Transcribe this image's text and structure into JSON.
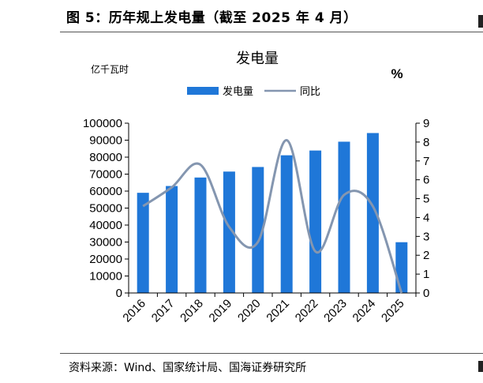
{
  "figure": {
    "title": "图 5：历年规上发电量（截至 2025 年 4 月）",
    "source": "资料来源：Wind、国家统计局、国海证券研究所"
  },
  "chart_data": {
    "type": "bar",
    "title": "发电量",
    "left_unit": "亿千瓦时",
    "right_unit": "%",
    "categories": [
      "2016",
      "2017",
      "2018",
      "2019",
      "2020",
      "2021",
      "2022",
      "2023",
      "2024",
      "2025"
    ],
    "series": [
      {
        "name": "发电量",
        "kind": "bar",
        "axis": "left",
        "color": "#1f77d8",
        "values": [
          59000,
          63000,
          68000,
          71500,
          74200,
          81100,
          83900,
          89100,
          94200,
          29900
        ]
      },
      {
        "name": "同比",
        "kind": "line",
        "axis": "right",
        "color": "#8496b0",
        "values": [
          4.6,
          5.6,
          6.8,
          3.5,
          2.7,
          8.1,
          2.2,
          5.2,
          4.6,
          0.0
        ]
      }
    ],
    "left_axis": {
      "min": 0,
      "max": 100000,
      "ticks": [
        0,
        10000,
        20000,
        30000,
        40000,
        50000,
        60000,
        70000,
        80000,
        90000,
        100000
      ]
    },
    "right_axis": {
      "min": 0,
      "max": 9,
      "ticks": [
        0,
        1,
        2,
        3,
        4,
        5,
        6,
        7,
        8,
        9
      ]
    },
    "legend_position": "top-center",
    "grid": false
  }
}
